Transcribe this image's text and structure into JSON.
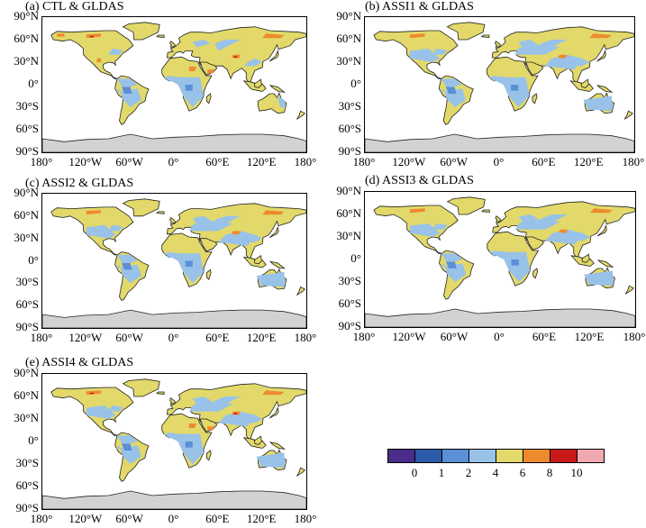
{
  "panels": [
    {
      "title": "(a) CTL & GLDAS"
    },
    {
      "title": "(b) ASSI1 & GLDAS"
    },
    {
      "title": "(c) ASSI2 & GLDAS"
    },
    {
      "title": "(d) ASSI3 & GLDAS"
    },
    {
      "title": "(e) ASSI4 & GLDAS"
    }
  ],
  "lat_labels": [
    "90°N",
    "60°N",
    "30°N",
    "0°",
    "30°S",
    "60°S",
    "90°S"
  ],
  "lon_labels": [
    "180°",
    "120°W",
    "60°W",
    "0°",
    "60°E",
    "120°E",
    "180°"
  ],
  "colorbar": {
    "colors": [
      "#4b2c8a",
      "#2a5aa8",
      "#5b8fd6",
      "#99c2e8",
      "#e2d96a",
      "#ee8a2e",
      "#c81a1a",
      "#f1a9b0"
    ],
    "labels": [
      "0",
      "1",
      "2",
      "4",
      "6",
      "8",
      "10"
    ]
  },
  "palette": {
    "land_main": "#e2d96a",
    "land_blue": "#99c2e8",
    "land_mid_blue": "#5b8fd6",
    "orange": "#ee8a2e",
    "red": "#c81a1a",
    "antarctica": "#d2d2d2"
  }
}
